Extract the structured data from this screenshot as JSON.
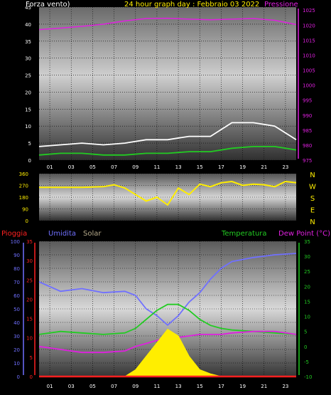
{
  "colors": {
    "pressure": "#e020e0",
    "wind_gust": "#ffffff",
    "wind_avg": "#22cc22",
    "wind_dir": "#ffee00",
    "rain": "#ff2020",
    "humidity": "#7070ff",
    "solar": "#ffee00",
    "temperature": "#22cc22",
    "dew_point": "#e020e0",
    "frame_text": "#ffffff",
    "title": "#ffee00"
  },
  "header": {
    "wind_title": "Forza vento)",
    "graph_title": "24 hour graph day : Febbraio 03 2022",
    "pressure_title": "Pressione"
  },
  "compass": [
    "N",
    "W",
    "S",
    "E",
    "N"
  ],
  "bottom_header": {
    "rain": "Pioggia",
    "humidity": "Umidita",
    "solar": "Solar",
    "temperature": "Temperatura",
    "dew_point": "Dew Point (°C)"
  },
  "x_ticks": [
    "01",
    "03",
    "05",
    "07",
    "09",
    "11",
    "13",
    "15",
    "17",
    "19",
    "21",
    "23"
  ],
  "chart_data": [
    {
      "type": "line",
      "name": "wind-pressure",
      "x_hours": [
        0,
        2,
        4,
        6,
        8,
        10,
        12,
        14,
        16,
        18,
        20,
        22,
        24
      ],
      "y_left_ticks": [
        "0",
        "5",
        "10",
        "15",
        "20",
        "25",
        "30",
        "35",
        "40",
        "45"
      ],
      "y_left_range": [
        0,
        45
      ],
      "y_right_ticks": [
        "975",
        "980",
        "985",
        "990",
        "995",
        "1000",
        "1005",
        "1010",
        "1015",
        "1020",
        "1025"
      ],
      "y_right_range": [
        975,
        1026
      ],
      "series": [
        {
          "key": "pressure",
          "axis": "right",
          "values": [
            1018.5,
            1019,
            1019.6,
            1020.3,
            1021.4,
            1022.2,
            1022.3,
            1022,
            1021.8,
            1022,
            1022.2,
            1021.6,
            1020.2
          ]
        },
        {
          "key": "wind_gust",
          "axis": "left",
          "values": [
            4,
            4.5,
            5,
            4.5,
            5,
            6,
            6,
            7,
            7,
            11,
            11,
            10,
            6
          ]
        },
        {
          "key": "wind_avg",
          "axis": "left",
          "values": [
            1.5,
            2,
            2,
            1.5,
            1.5,
            2,
            2,
            2.5,
            2.5,
            3.5,
            4,
            4,
            3
          ]
        }
      ]
    },
    {
      "type": "scatter",
      "name": "wind-direction",
      "y_ticks": [
        "360",
        "270",
        "180",
        "90",
        "0"
      ],
      "y_range": [
        0,
        360
      ],
      "x_hours": [
        0,
        2,
        4,
        6,
        7,
        8,
        9,
        10,
        11,
        12,
        13,
        14,
        15,
        16,
        17,
        18,
        19,
        20,
        21,
        22,
        23,
        24
      ],
      "values": [
        255,
        255,
        255,
        260,
        275,
        250,
        200,
        150,
        180,
        120,
        250,
        200,
        280,
        260,
        290,
        300,
        270,
        280,
        275,
        260,
        300,
        290
      ]
    },
    {
      "type": "line",
      "name": "humidity-temperature",
      "x_hours": [
        0,
        2,
        4,
        6,
        8,
        9,
        10,
        11,
        12,
        13,
        14,
        15,
        16,
        17,
        18,
        20,
        22,
        24
      ],
      "y_left_ticks": [
        "0",
        "10",
        "20",
        "30",
        "40",
        "50",
        "60",
        "70",
        "80",
        "90",
        "100"
      ],
      "y_left_range": [
        0,
        100
      ],
      "y_rain_ticks": [
        "0",
        "5",
        "10",
        "15",
        "20",
        "25",
        "30",
        "35"
      ],
      "y_rain_range": [
        0,
        35
      ],
      "y_right_ticks": [
        "-10",
        "-5",
        "0",
        "5",
        "10",
        "15",
        "20",
        "25",
        "30",
        "35"
      ],
      "y_right_range": [
        -10,
        35
      ],
      "series": [
        {
          "key": "humidity",
          "axis": "left",
          "values": [
            70,
            63,
            65,
            62,
            63,
            60,
            50,
            45,
            38,
            45,
            55,
            62,
            72,
            80,
            85,
            88,
            90,
            91
          ]
        },
        {
          "key": "temperature",
          "axis": "right",
          "values": [
            4,
            5,
            4.5,
            4,
            4.5,
            6,
            9,
            12,
            14,
            14,
            12,
            9,
            7,
            6,
            5.5,
            5,
            4.5,
            4
          ]
        },
        {
          "key": "dew_point",
          "axis": "right",
          "values": [
            0,
            -1,
            -2,
            -2,
            -1.5,
            0,
            1,
            2,
            3,
            3,
            3.5,
            4,
            4,
            4,
            4.5,
            5,
            5,
            4
          ]
        },
        {
          "key": "solar",
          "axis": "left",
          "values": [
            0,
            0,
            0,
            0,
            0,
            5,
            15,
            25,
            35,
            30,
            15,
            5,
            2,
            0,
            0,
            0,
            0,
            0
          ]
        },
        {
          "key": "rain",
          "axis": "rain",
          "values": [
            0,
            0,
            0,
            0,
            0,
            0,
            0,
            0,
            0,
            0,
            0,
            0,
            0,
            0,
            0,
            0,
            0,
            0
          ]
        }
      ]
    }
  ]
}
